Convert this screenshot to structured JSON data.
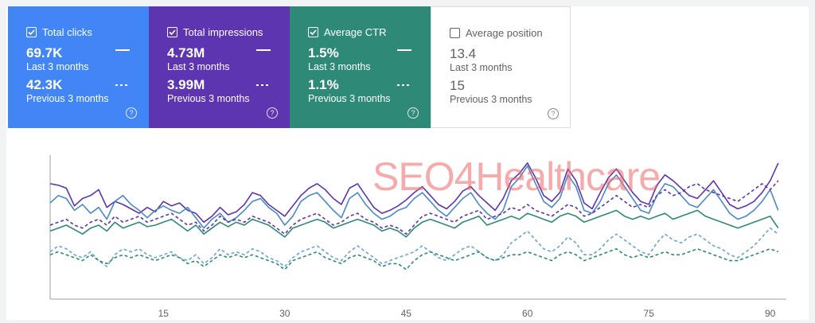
{
  "cards": [
    {
      "label": "Total clicks",
      "current": "69.7K",
      "current_sub": "Last 3 months",
      "previous": "42.3K",
      "previous_sub": "Previous 3 months",
      "checked": true,
      "color": "#4285f4",
      "help": "?"
    },
    {
      "label": "Total impressions",
      "current": "4.73M",
      "current_sub": "Last 3 months",
      "previous": "3.99M",
      "previous_sub": "Previous 3 months",
      "checked": true,
      "color": "#5e35b1",
      "help": "?"
    },
    {
      "label": "Average CTR",
      "current": "1.5%",
      "current_sub": "Last 3 months",
      "previous": "1.1%",
      "previous_sub": "Previous 3 months",
      "checked": true,
      "color": "#2e8a76",
      "help": "?"
    },
    {
      "label": "Average position",
      "current": "13.4",
      "current_sub": "Last 3 months",
      "previous": "15",
      "previous_sub": "Previous 3 months",
      "checked": false,
      "color": "#ffffff",
      "help": "?"
    }
  ],
  "watermark": "SEO4Healthcare",
  "chart_data": {
    "type": "line",
    "xlim": [
      1,
      92
    ],
    "ylim": [
      0,
      100
    ],
    "x_ticks": [
      15,
      30,
      45,
      60,
      75,
      90
    ],
    "grid": false,
    "series": [
      {
        "color": "#5e35b1",
        "style": "solid",
        "values": [
          78,
          77,
          75,
          63,
          68,
          70,
          74,
          62,
          66,
          64,
          61,
          58,
          62,
          59,
          66,
          63,
          65,
          60,
          58,
          52,
          56,
          62,
          57,
          59,
          64,
          72,
          70,
          64,
          60,
          56,
          63,
          70,
          75,
          78,
          74,
          68,
          64,
          75,
          78,
          70,
          62,
          58,
          60,
          63,
          67,
          72,
          76,
          70,
          64,
          61,
          66,
          73,
          76,
          70,
          65,
          60,
          68,
          80,
          85,
          92,
          82,
          70,
          66,
          72,
          88,
          80,
          65,
          61,
          72,
          82,
          88,
          80,
          72,
          66,
          64,
          77,
          84,
          80,
          75,
          70,
          68,
          74,
          80,
          72,
          64,
          61,
          63,
          66,
          72,
          80,
          92
        ]
      },
      {
        "color": "#4a89c8",
        "style": "solid",
        "values": [
          65,
          70,
          68,
          60,
          64,
          58,
          62,
          54,
          66,
          70,
          64,
          60,
          55,
          60,
          63,
          60,
          58,
          62,
          55,
          48,
          54,
          58,
          52,
          55,
          60,
          66,
          68,
          62,
          58,
          50,
          56,
          66,
          70,
          72,
          66,
          60,
          55,
          68,
          72,
          64,
          58,
          54,
          56,
          60,
          62,
          68,
          72,
          66,
          60,
          56,
          62,
          68,
          72,
          64,
          58,
          54,
          60,
          76,
          82,
          90,
          78,
          66,
          62,
          68,
          84,
          76,
          60,
          58,
          66,
          78,
          84,
          76,
          68,
          60,
          58,
          70,
          78,
          76,
          70,
          64,
          62,
          68,
          74,
          66,
          58,
          54,
          56,
          60,
          66,
          74,
          60
        ]
      },
      {
        "color": "#2e8a76",
        "style": "solid",
        "values": [
          46,
          48,
          50,
          47,
          44,
          48,
          50,
          46,
          52,
          48,
          50,
          52,
          49,
          50,
          52,
          54,
          50,
          46,
          50,
          44,
          48,
          52,
          49,
          52,
          50,
          54,
          52,
          50,
          46,
          42,
          48,
          50,
          52,
          54,
          52,
          48,
          50,
          52,
          54,
          52,
          50,
          46,
          48,
          46,
          42,
          48,
          52,
          54,
          52,
          50,
          48,
          52,
          54,
          56,
          50,
          52,
          54,
          56,
          54,
          58,
          56,
          54,
          52,
          56,
          58,
          56,
          52,
          54,
          56,
          58,
          60,
          56,
          54,
          56,
          54,
          56,
          58,
          54,
          56,
          58,
          60,
          56,
          54,
          52,
          50,
          48,
          50,
          52,
          54,
          56,
          48
        ]
      },
      {
        "color": "#5e35b1",
        "style": "dashed",
        "values": [
          50,
          52,
          54,
          50,
          48,
          52,
          54,
          50,
          56,
          52,
          54,
          56,
          52,
          54,
          56,
          58,
          54,
          50,
          52,
          46,
          50,
          56,
          52,
          54,
          52,
          56,
          54,
          52,
          48,
          44,
          50,
          54,
          56,
          58,
          54,
          50,
          52,
          56,
          58,
          54,
          52,
          48,
          50,
          48,
          44,
          50,
          56,
          58,
          56,
          54,
          52,
          56,
          58,
          60,
          54,
          56,
          58,
          62,
          60,
          64,
          60,
          58,
          56,
          60,
          64,
          62,
          56,
          58,
          62,
          66,
          70,
          66,
          62,
          64,
          62,
          70,
          74,
          70,
          72,
          76,
          78,
          74,
          72,
          70,
          68,
          66,
          70,
          74,
          78,
          74,
          80
        ]
      },
      {
        "color": "#6aa6cf",
        "style": "dashed",
        "values": [
          32,
          36,
          34,
          30,
          28,
          32,
          26,
          22,
          30,
          34,
          32,
          34,
          30,
          28,
          30,
          32,
          28,
          26,
          30,
          24,
          28,
          34,
          30,
          32,
          30,
          34,
          32,
          28,
          26,
          22,
          28,
          32,
          34,
          36,
          32,
          28,
          26,
          32,
          36,
          32,
          28,
          24,
          26,
          28,
          30,
          32,
          36,
          32,
          28,
          26,
          30,
          34,
          36,
          32,
          28,
          26,
          30,
          38,
          42,
          46,
          40,
          34,
          32,
          36,
          42,
          38,
          30,
          30,
          34,
          40,
          44,
          40,
          36,
          32,
          30,
          38,
          44,
          40,
          38,
          42,
          44,
          40,
          36,
          34,
          30,
          28,
          32,
          36,
          42,
          48,
          44
        ]
      },
      {
        "color": "#2e8a76",
        "style": "dashed",
        "values": [
          30,
          32,
          30,
          28,
          26,
          30,
          26,
          24,
          28,
          30,
          28,
          30,
          28,
          26,
          28,
          30,
          28,
          24,
          26,
          22,
          26,
          30,
          28,
          30,
          28,
          30,
          28,
          26,
          24,
          20,
          26,
          28,
          30,
          32,
          28,
          26,
          24,
          28,
          30,
          28,
          26,
          22,
          24,
          24,
          20,
          26,
          30,
          32,
          30,
          28,
          26,
          28,
          30,
          32,
          28,
          26,
          28,
          30,
          30,
          32,
          30,
          28,
          26,
          30,
          32,
          30,
          26,
          28,
          30,
          32,
          34,
          30,
          28,
          30,
          28,
          30,
          32,
          30,
          30,
          32,
          34,
          32,
          30,
          28,
          26,
          26,
          28,
          30,
          32,
          34,
          32
        ]
      }
    ]
  }
}
